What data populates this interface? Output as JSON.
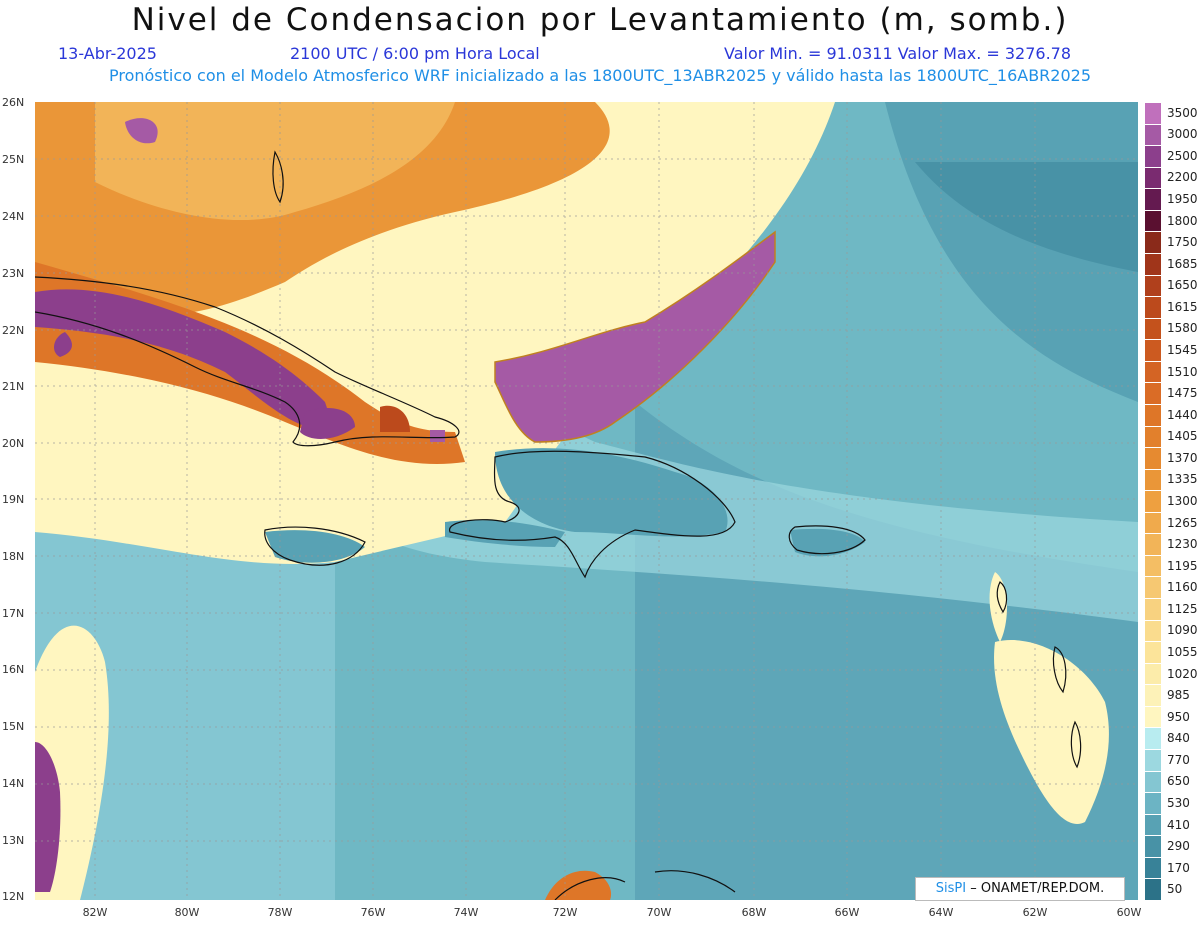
{
  "title": "Nivel de Condensacion por Levantamiento (m, somb.)",
  "date": "13-Abr-2025",
  "time": "2100 UTC / 6:00 pm Hora Local",
  "value_range": "Valor Min. = 91.0311   Valor Max. = 3276.78",
  "forecast_note": "Pronóstico con el Modelo Atmosferico WRF inicializado a las 1800UTC_13ABR2025 y válido hasta las  1800UTC_16ABR2025",
  "credit": {
    "brand": "SisPI",
    "org": " –  ONAMET/REP.DOM."
  },
  "lat_labels": [
    "26N",
    "25N",
    "24N",
    "23N",
    "22N",
    "21N",
    "20N",
    "19N",
    "18N",
    "17N",
    "16N",
    "15N",
    "14N",
    "13N",
    "12N"
  ],
  "lon_labels": [
    "82W",
    "80W",
    "78W",
    "76W",
    "74W",
    "72W",
    "70W",
    "68W",
    "66W",
    "64W",
    "62W",
    "60W"
  ],
  "legend": {
    "labels": [
      "3500",
      "3000",
      "2500",
      "2200",
      "1950",
      "1800",
      "1750",
      "1685",
      "1650",
      "1615",
      "1580",
      "1545",
      "1510",
      "1475",
      "1440",
      "1405",
      "1370",
      "1335",
      "1300",
      "1265",
      "1230",
      "1195",
      "1160",
      "1125",
      "1090",
      "1055",
      "1020",
      "985",
      "950",
      "840",
      "770",
      "650",
      "530",
      "410",
      "290",
      "170",
      "50"
    ],
    "colors": [
      "#c070bc",
      "#a55aa5",
      "#8c3f8c",
      "#7a2b70",
      "#641a50",
      "#5a1030",
      "#8a2a1a",
      "#a0351a",
      "#b0401c",
      "#bc4a1c",
      "#c4521c",
      "#cc5a20",
      "#d46424",
      "#da6c26",
      "#de7628",
      "#e2802c",
      "#e68a30",
      "#ea9638",
      "#eea040",
      "#f0aa4c",
      "#f2b458",
      "#f4be64",
      "#f6c872",
      "#f8d280",
      "#fadc8e",
      "#fce49a",
      "#fcecaa",
      "#fdf2b8",
      "#fff6c0",
      "#b8ecf0",
      "#9cd8e0",
      "#84c6d2",
      "#6cb4c4",
      "#58a2b4",
      "#4892a6",
      "#388298",
      "#2c7288"
    ]
  }
}
